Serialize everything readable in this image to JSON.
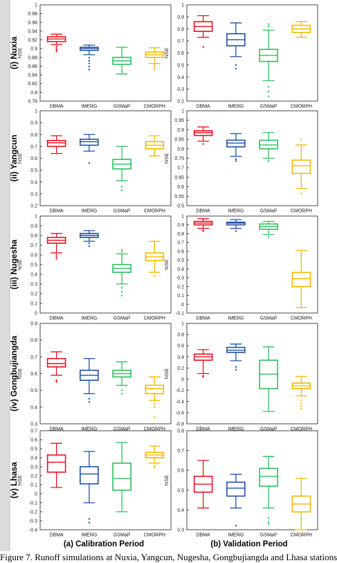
{
  "figure": {
    "caption": "Figure 7. Runoff simulations at Nuxia, Yangcun, Nugesha, Gongbujiangda and Lhasa stations",
    "column_titles": [
      "(a) Calibration Period",
      "(b) Validation Period"
    ],
    "row_titles": [
      "(i) Nuxia",
      "(ii) Yangcun",
      "(iii) Nugesha",
      "(iv) Gongbujiangda",
      "(v) Lhasa"
    ],
    "colors": {
      "DBMA": "#e8101e",
      "IMERG": "#1f4ea3",
      "GSMaP": "#2bbf5e",
      "CMORPH": "#f5b800"
    }
  },
  "chart_data": [
    {
      "type": "box",
      "station": "(i) Nuxia",
      "period": "(a) Calibration Period",
      "ylabel": "NSE",
      "ylim": [
        0.78,
        1.0
      ],
      "yticks": [
        "0.78",
        "0.8",
        "0.82",
        "0.84",
        "0.86",
        "0.88",
        "0.9",
        "0.92",
        "0.94",
        "0.96",
        "0.98",
        "1"
      ],
      "categories": [
        "DBMA",
        "IMERG",
        "GSMaP",
        "CMORPH"
      ],
      "series": [
        {
          "min": 0.909,
          "q1": 0.916,
          "median": 0.922,
          "q3": 0.927,
          "max": 0.933,
          "outliers": [
            0.905,
            0.901,
            0.897,
            0.894
          ]
        },
        {
          "min": 0.886,
          "q1": 0.896,
          "median": 0.9,
          "q3": 0.903,
          "max": 0.908,
          "outliers": [
            0.879,
            0.872,
            0.866,
            0.859,
            0.852
          ]
        },
        {
          "min": 0.842,
          "q1": 0.864,
          "median": 0.872,
          "q3": 0.88,
          "max": 0.903
        },
        {
          "min": 0.866,
          "q1": 0.88,
          "median": 0.886,
          "q3": 0.892,
          "max": 0.902,
          "outliers": [
            0.862,
            0.857,
            0.852
          ]
        }
      ]
    },
    {
      "type": "box",
      "station": "(i) Nuxia",
      "period": "(b) Validation Period",
      "ylabel": "NSE",
      "ylim": [
        0.2,
        1.0
      ],
      "yticks": [
        "0.2",
        "0.3",
        "0.4",
        "0.5",
        "0.6",
        "0.7",
        "0.8",
        "0.9",
        "1"
      ],
      "categories": [
        "DBMA",
        "IMERG",
        "GSMaP",
        "CMORPH"
      ],
      "series": [
        {
          "min": 0.73,
          "q1": 0.78,
          "median": 0.82,
          "q3": 0.86,
          "max": 0.91,
          "outliers": [
            0.65
          ]
        },
        {
          "min": 0.57,
          "q1": 0.66,
          "median": 0.71,
          "q3": 0.76,
          "max": 0.85,
          "outliers": [
            0.5,
            0.47
          ]
        },
        {
          "min": 0.37,
          "q1": 0.53,
          "median": 0.58,
          "q3": 0.63,
          "max": 0.79,
          "outliers": [
            0.82,
            0.84,
            0.32,
            0.28,
            0.24
          ]
        },
        {
          "min": 0.73,
          "q1": 0.77,
          "median": 0.8,
          "q3": 0.83,
          "max": 0.86
        }
      ]
    },
    {
      "type": "box",
      "station": "(ii) Yangcun",
      "period": "(a) Calibration Period",
      "ylabel": "NSE",
      "ylim": [
        0.2,
        1.0
      ],
      "yticks": [
        "0.2",
        "0.3",
        "0.4",
        "0.5",
        "0.6",
        "0.7",
        "0.8",
        "0.9",
        "1"
      ],
      "categories": [
        "DBMA",
        "IMERG",
        "GSMaP",
        "CMORPH"
      ],
      "series": [
        {
          "min": 0.64,
          "q1": 0.7,
          "median": 0.73,
          "q3": 0.75,
          "max": 0.79
        },
        {
          "min": 0.66,
          "q1": 0.71,
          "median": 0.74,
          "q3": 0.76,
          "max": 0.8,
          "outliers": [
            0.56
          ]
        },
        {
          "min": 0.41,
          "q1": 0.51,
          "median": 0.55,
          "q3": 0.59,
          "max": 0.7,
          "outliers": [
            0.36,
            0.33
          ]
        },
        {
          "min": 0.62,
          "q1": 0.68,
          "median": 0.71,
          "q3": 0.74,
          "max": 0.79
        }
      ]
    },
    {
      "type": "box",
      "station": "(ii) Yangcun",
      "period": "(b) Validation Period",
      "ylabel": "NSE",
      "ylim": [
        0.5,
        1.0
      ],
      "yticks": [
        "0.5",
        "0.55",
        "0.6",
        "0.65",
        "0.7",
        "0.75",
        "0.8",
        "0.85",
        "0.9",
        "0.95",
        "1"
      ],
      "categories": [
        "DBMA",
        "IMERG",
        "GSMaP",
        "CMORPH"
      ],
      "series": [
        {
          "min": 0.84,
          "q1": 0.87,
          "median": 0.885,
          "q3": 0.895,
          "max": 0.915,
          "outliers": [
            0.825
          ]
        },
        {
          "min": 0.76,
          "q1": 0.81,
          "median": 0.83,
          "q3": 0.845,
          "max": 0.88,
          "outliers": [
            0.745,
            0.735
          ]
        },
        {
          "min": 0.75,
          "q1": 0.8,
          "median": 0.82,
          "q3": 0.845,
          "max": 0.885,
          "outliers": [
            0.735
          ]
        },
        {
          "min": 0.59,
          "q1": 0.67,
          "median": 0.71,
          "q3": 0.74,
          "max": 0.82,
          "outliers": [
            0.85,
            0.565
          ]
        }
      ]
    },
    {
      "type": "box",
      "station": "(iii) Nugesha",
      "period": "(a) Calibration Period",
      "ylabel": "NSE",
      "ylim": [
        0.0,
        1.0
      ],
      "yticks": [
        "0",
        "0.1",
        "0.2",
        "0.3",
        "0.4",
        "0.5",
        "0.6",
        "0.7",
        "0.8",
        "0.9",
        "1"
      ],
      "categories": [
        "DBMA",
        "IMERG",
        "GSMaP",
        "CMORPH"
      ],
      "series": [
        {
          "min": 0.62,
          "q1": 0.72,
          "median": 0.75,
          "q3": 0.78,
          "max": 0.82,
          "outliers": [
            0.6,
            0.58,
            0.56
          ]
        },
        {
          "min": 0.74,
          "q1": 0.78,
          "median": 0.8,
          "q3": 0.82,
          "max": 0.85,
          "outliers": [
            0.72,
            0.69
          ]
        },
        {
          "min": 0.3,
          "q1": 0.42,
          "median": 0.46,
          "q3": 0.5,
          "max": 0.61,
          "outliers": [
            0.63,
            0.65,
            0.26,
            0.22,
            0.18
          ]
        },
        {
          "min": 0.42,
          "q1": 0.54,
          "median": 0.58,
          "q3": 0.62,
          "max": 0.74,
          "outliers": [
            0.38
          ]
        }
      ]
    },
    {
      "type": "box",
      "station": "(iii) Nugesha",
      "period": "(b) Validation Period",
      "ylabel": "NSE",
      "ylim": [
        -0.1,
        1.0
      ],
      "yticks": [
        "-0.1",
        "0",
        "0.1",
        "0.2",
        "0.3",
        "0.4",
        "0.5",
        "0.6",
        "0.7",
        "0.8",
        "0.9",
        "1"
      ],
      "categories": [
        "DBMA",
        "IMERG",
        "GSMaP",
        "CMORPH"
      ],
      "series": [
        {
          "min": 0.86,
          "q1": 0.9,
          "median": 0.92,
          "q3": 0.94,
          "max": 0.97,
          "outliers": [
            0.84,
            0.83
          ]
        },
        {
          "min": 0.86,
          "q1": 0.9,
          "median": 0.92,
          "q3": 0.93,
          "max": 0.96,
          "outliers": [
            0.83
          ]
        },
        {
          "min": 0.79,
          "q1": 0.85,
          "median": 0.88,
          "q3": 0.91,
          "max": 0.94,
          "outliers": [
            0.76
          ]
        },
        {
          "min": -0.04,
          "q1": 0.2,
          "median": 0.29,
          "q3": 0.36,
          "max": 0.61
        }
      ]
    },
    {
      "type": "box",
      "station": "(iv) Gongbujiangda",
      "period": "(a) Calibration Period",
      "ylabel": "NSE",
      "ylim": [
        0.3,
        0.9
      ],
      "yticks": [
        "0.3",
        "0.4",
        "0.5",
        "0.6",
        "0.7",
        "0.8",
        "0.9"
      ],
      "categories": [
        "DBMA",
        "IMERG",
        "GSMaP",
        "CMORPH"
      ],
      "series": [
        {
          "min": 0.59,
          "q1": 0.64,
          "median": 0.66,
          "q3": 0.69,
          "max": 0.73,
          "outliers": [
            0.56,
            0.55
          ]
        },
        {
          "min": 0.48,
          "q1": 0.56,
          "median": 0.59,
          "q3": 0.62,
          "max": 0.69,
          "outliers": [
            0.45,
            0.43
          ]
        },
        {
          "min": 0.53,
          "q1": 0.58,
          "median": 0.6,
          "q3": 0.62,
          "max": 0.67,
          "outliers": [
            0.5,
            0.48
          ]
        },
        {
          "min": 0.44,
          "q1": 0.48,
          "median": 0.51,
          "q3": 0.53,
          "max": 0.58,
          "outliers": [
            0.42,
            0.4,
            0.34
          ]
        }
      ]
    },
    {
      "type": "box",
      "station": "(iv) Gongbujiangda",
      "period": "(b) Validation Period",
      "ylabel": "NSE",
      "ylim": [
        -0.8,
        1.0
      ],
      "yticks": [
        "-0.8",
        "-0.6",
        "-0.4",
        "-0.2",
        "0",
        "0.2",
        "0.4",
        "0.6",
        "0.8",
        "1"
      ],
      "categories": [
        "DBMA",
        "IMERG",
        "GSMaP",
        "CMORPH"
      ],
      "series": [
        {
          "min": 0.1,
          "q1": 0.34,
          "median": 0.4,
          "q3": 0.45,
          "max": 0.53,
          "outliers": [
            0.06,
            0.04
          ]
        },
        {
          "min": 0.33,
          "q1": 0.48,
          "median": 0.52,
          "q3": 0.57,
          "max": 0.63,
          "outliers": [
            0.22,
            0.17
          ]
        },
        {
          "min": -0.58,
          "q1": -0.17,
          "median": 0.09,
          "q3": 0.34,
          "max": 0.58
        },
        {
          "min": -0.3,
          "q1": -0.17,
          "median": -0.12,
          "q3": -0.07,
          "max": 0.05,
          "outliers": [
            -0.38,
            -0.43,
            -0.48,
            -0.53
          ]
        }
      ]
    },
    {
      "type": "box",
      "station": "(v) Lhasa",
      "period": "(a) Calibration Period",
      "ylabel": "NSE",
      "ylim": [
        -0.4,
        0.7
      ],
      "yticks": [
        "-0.4",
        "-0.3",
        "-0.2",
        "-0.1",
        "0",
        "0.1",
        "0.2",
        "0.3",
        "0.4",
        "0.5",
        "0.6",
        "0.7"
      ],
      "categories": [
        "DBMA",
        "IMERG",
        "GSMaP",
        "CMORPH"
      ],
      "series": [
        {
          "min": 0.07,
          "q1": 0.24,
          "median": 0.35,
          "q3": 0.43,
          "max": 0.56
        },
        {
          "min": -0.1,
          "q1": 0.11,
          "median": 0.22,
          "q3": 0.3,
          "max": 0.47,
          "outliers": [
            -0.28,
            -0.32
          ]
        },
        {
          "min": -0.2,
          "q1": 0.04,
          "median": 0.17,
          "q3": 0.34,
          "max": 0.57
        },
        {
          "min": 0.34,
          "q1": 0.4,
          "median": 0.43,
          "q3": 0.46,
          "max": 0.53,
          "outliers": [
            0.31,
            0.29
          ]
        }
      ]
    },
    {
      "type": "box",
      "station": "(v) Lhasa",
      "period": "(b) Validation Period",
      "ylabel": "NSE",
      "ylim": [
        0.3,
        0.8
      ],
      "yticks": [
        "0.3",
        "0.4",
        "0.5",
        "0.6",
        "0.7",
        "0.8"
      ],
      "categories": [
        "DBMA",
        "IMERG",
        "GSMaP",
        "CMORPH"
      ],
      "series": [
        {
          "min": 0.41,
          "q1": 0.49,
          "median": 0.53,
          "q3": 0.57,
          "max": 0.65
        },
        {
          "min": 0.41,
          "q1": 0.47,
          "median": 0.51,
          "q3": 0.54,
          "max": 0.58,
          "outliers": [
            0.32
          ]
        },
        {
          "min": 0.41,
          "q1": 0.52,
          "median": 0.57,
          "q3": 0.61,
          "max": 0.67,
          "outliers": [
            0.36,
            0.34,
            0.33
          ]
        },
        {
          "min": 0.3,
          "q1": 0.39,
          "median": 0.43,
          "q3": 0.47,
          "max": 0.56
        }
      ]
    }
  ]
}
